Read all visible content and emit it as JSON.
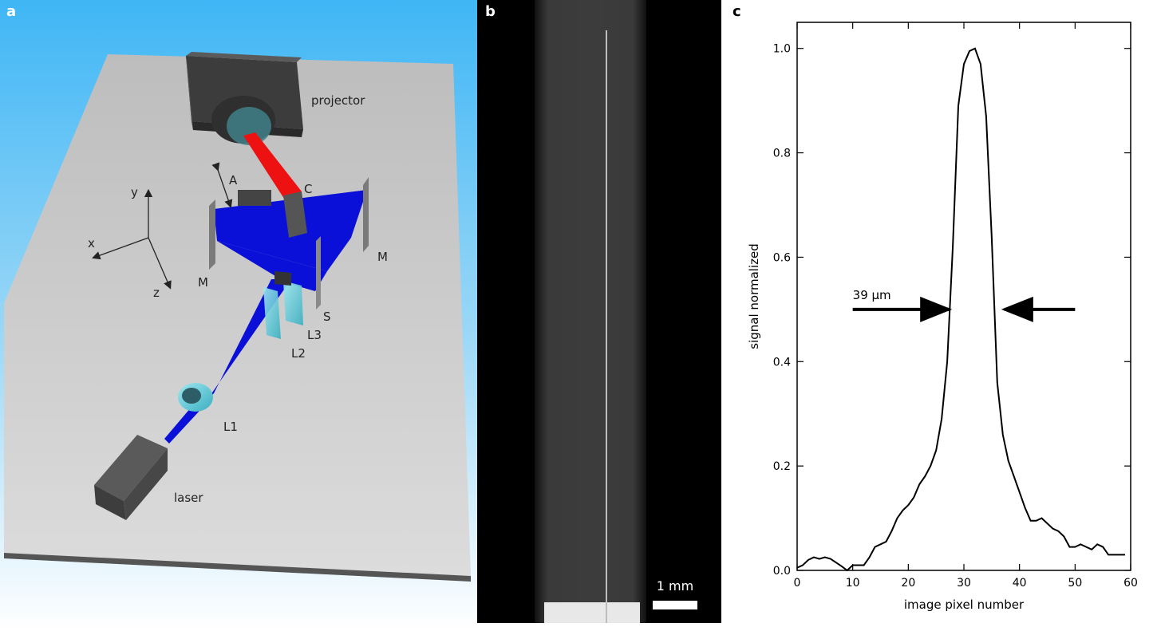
{
  "panel_a": {
    "letter": "a",
    "labels": {
      "projector": "projector",
      "A": "A",
      "C": "C",
      "M_left": "M",
      "M_right": "M",
      "S": "S",
      "L1": "L1",
      "L2": "L2",
      "L3": "L3",
      "laser": "laser",
      "axis_x": "x",
      "axis_y": "y",
      "axis_z": "z"
    },
    "colors": {
      "sky_top": "#3fb6f5",
      "table": "#c8c8c8",
      "beam": "#0a10d8",
      "projector_beam": "#ee1111",
      "lens": "#55c8d8",
      "device": "#4a4a4a"
    }
  },
  "panel_b": {
    "letter": "b",
    "scale_label": "1 mm"
  },
  "panel_c": {
    "letter": "c",
    "annotation": "39 µm",
    "chart_data": {
      "type": "line",
      "xlabel": "image pixel number",
      "ylabel": "signal normalized",
      "xlim": [
        0,
        60
      ],
      "ylim": [
        0,
        1.05
      ],
      "xticks": [
        0,
        10,
        20,
        30,
        40,
        50,
        60
      ],
      "yticks": [
        0.0,
        0.2,
        0.4,
        0.6,
        0.8,
        1.0
      ],
      "x": [
        0,
        1,
        2,
        3,
        4,
        5,
        6,
        7,
        8,
        9,
        10,
        11,
        12,
        13,
        14,
        15,
        16,
        17,
        18,
        19,
        20,
        21,
        22,
        23,
        24,
        25,
        26,
        27,
        28,
        29,
        30,
        31,
        32,
        33,
        34,
        35,
        36,
        37,
        38,
        39,
        40,
        41,
        42,
        43,
        44,
        45,
        46,
        47,
        48,
        49,
        50,
        51,
        52,
        53,
        54,
        55,
        56,
        57,
        58,
        59
      ],
      "y": [
        0.005,
        0.01,
        0.02,
        0.025,
        0.022,
        0.025,
        0.022,
        0.015,
        0.008,
        0.0,
        0.01,
        0.01,
        0.01,
        0.025,
        0.045,
        0.05,
        0.055,
        0.075,
        0.1,
        0.115,
        0.125,
        0.14,
        0.165,
        0.18,
        0.2,
        0.23,
        0.29,
        0.4,
        0.62,
        0.89,
        0.97,
        0.995,
        1.0,
        0.97,
        0.87,
        0.64,
        0.36,
        0.26,
        0.21,
        0.18,
        0.15,
        0.12,
        0.095,
        0.095,
        0.1,
        0.09,
        0.08,
        0.075,
        0.065,
        0.045,
        0.045,
        0.05,
        0.045,
        0.04,
        0.05,
        0.045,
        0.03,
        0.03,
        0.03,
        0.03
      ],
      "width_arrow_level": 0.5,
      "width_arrow_left": [
        10,
        27.3
      ],
      "width_arrow_right": [
        50,
        37.3
      ],
      "annotation_anchor": [
        10,
        0.52
      ]
    }
  }
}
